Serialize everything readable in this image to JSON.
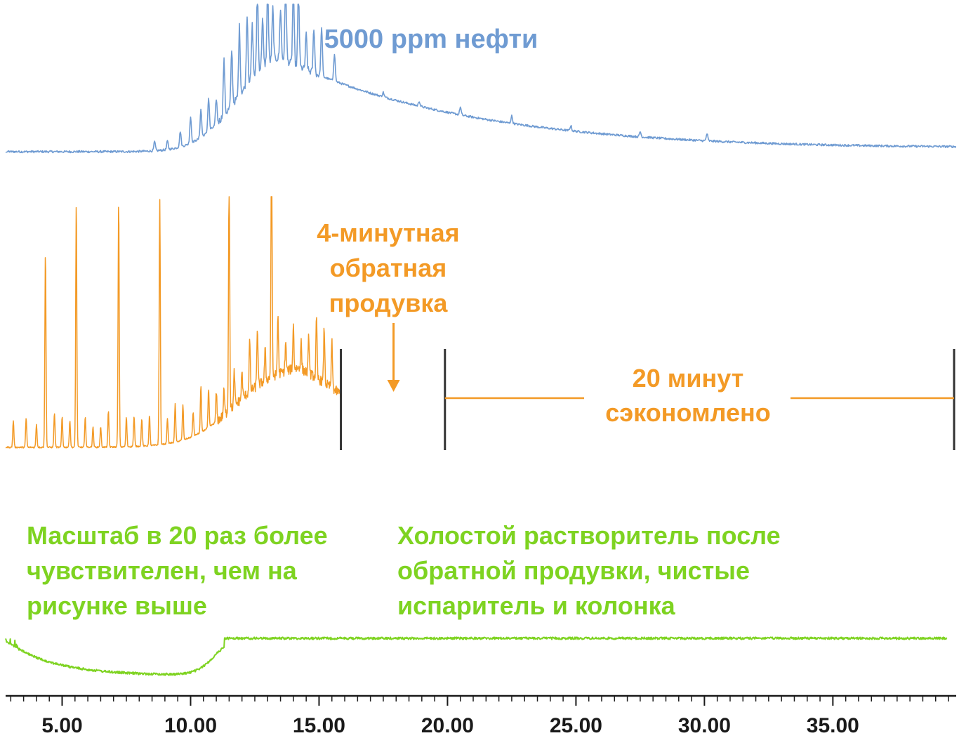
{
  "chart_data": {
    "type": "line",
    "x_axis": {
      "range": [
        2.8,
        39.8
      ],
      "tick_labels": [
        "5.00",
        "10.00",
        "15.00",
        "20.00",
        "25.00",
        "30.00",
        "35.00"
      ],
      "tick_values": [
        5,
        10,
        15,
        20,
        25,
        30,
        35
      ],
      "minor_tick_step": 0.5
    },
    "panels": [
      {
        "id": "oil",
        "color": "#6f9bd2",
        "annotation": "5000 ppm нефти",
        "x_end": 39.8,
        "hump_center": 13.5,
        "peaks_x": [
          8.6,
          9.1,
          9.6,
          10.0,
          10.4,
          10.7,
          11.0,
          11.3,
          11.6,
          11.9,
          12.2,
          12.4,
          12.6,
          12.8,
          13.0,
          13.2,
          13.5,
          13.7,
          14.0,
          14.2,
          14.5,
          14.8,
          15.1,
          15.6,
          17.5,
          18.9,
          20.5,
          22.5,
          24.8,
          27.5,
          30.1
        ]
      },
      {
        "id": "backflush",
        "color": "#f39a26",
        "annotation_lines": [
          "4-минутная",
          "обратная",
          "продувка"
        ],
        "saved_lines": [
          "20 минут",
          "сэкономлено"
        ],
        "x_end": 15.85,
        "hump_center": 13.8,
        "backflush_window": [
          15.85,
          19.9
        ],
        "arrow_at": 17.9,
        "saved_interval": [
          19.9,
          39.8
        ],
        "tall_peaks_x": [
          4.35,
          5.55,
          7.2,
          8.8,
          11.5,
          13.15
        ],
        "small_peaks_x": [
          3.1,
          3.6,
          4.0,
          4.7,
          5.0,
          5.3,
          5.9,
          6.2,
          6.5,
          6.8,
          7.5,
          7.8,
          8.1,
          8.4,
          9.1,
          9.4,
          9.7,
          10.1,
          10.4,
          10.7,
          11.0,
          11.3,
          11.7,
          12.0,
          12.3,
          12.6,
          12.9,
          13.4,
          13.7,
          14.0,
          14.3,
          14.6,
          14.9,
          15.2,
          15.5
        ]
      },
      {
        "id": "blank",
        "color": "#7ed321",
        "annotation_left": [
          "Масштаб в 20 раз более",
          "чувствителен, чем на",
          "рисунке выше"
        ],
        "annotation_right": [
          "Холостой растворитель после",
          "обратной продувки, чистые",
          "испаритель и колонка"
        ],
        "x_end": 39.45,
        "dip_minimum_x": 8.0
      }
    ]
  }
}
